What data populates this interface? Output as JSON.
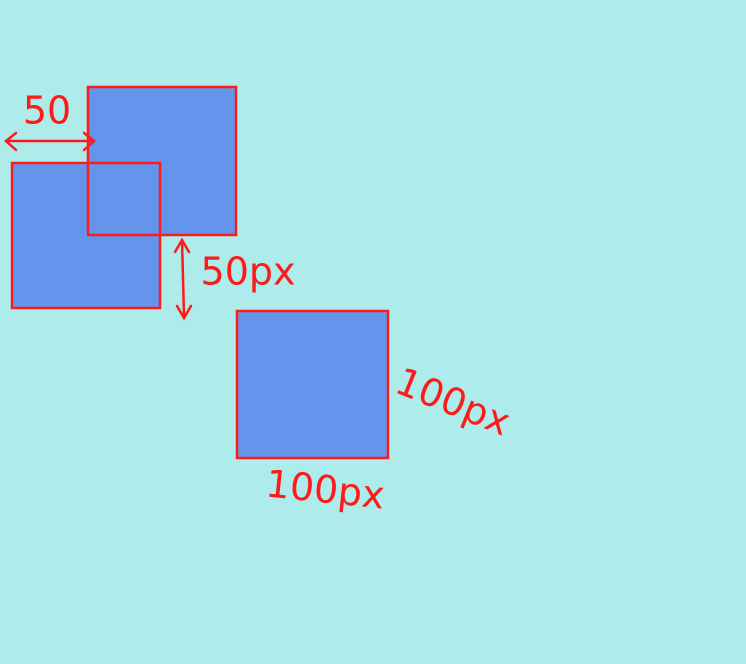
{
  "annotations": [
    {
      "label": "50"
    },
    {
      "label": "50px"
    },
    {
      "label": "100px"
    },
    {
      "label": "100px"
    }
  ]
}
